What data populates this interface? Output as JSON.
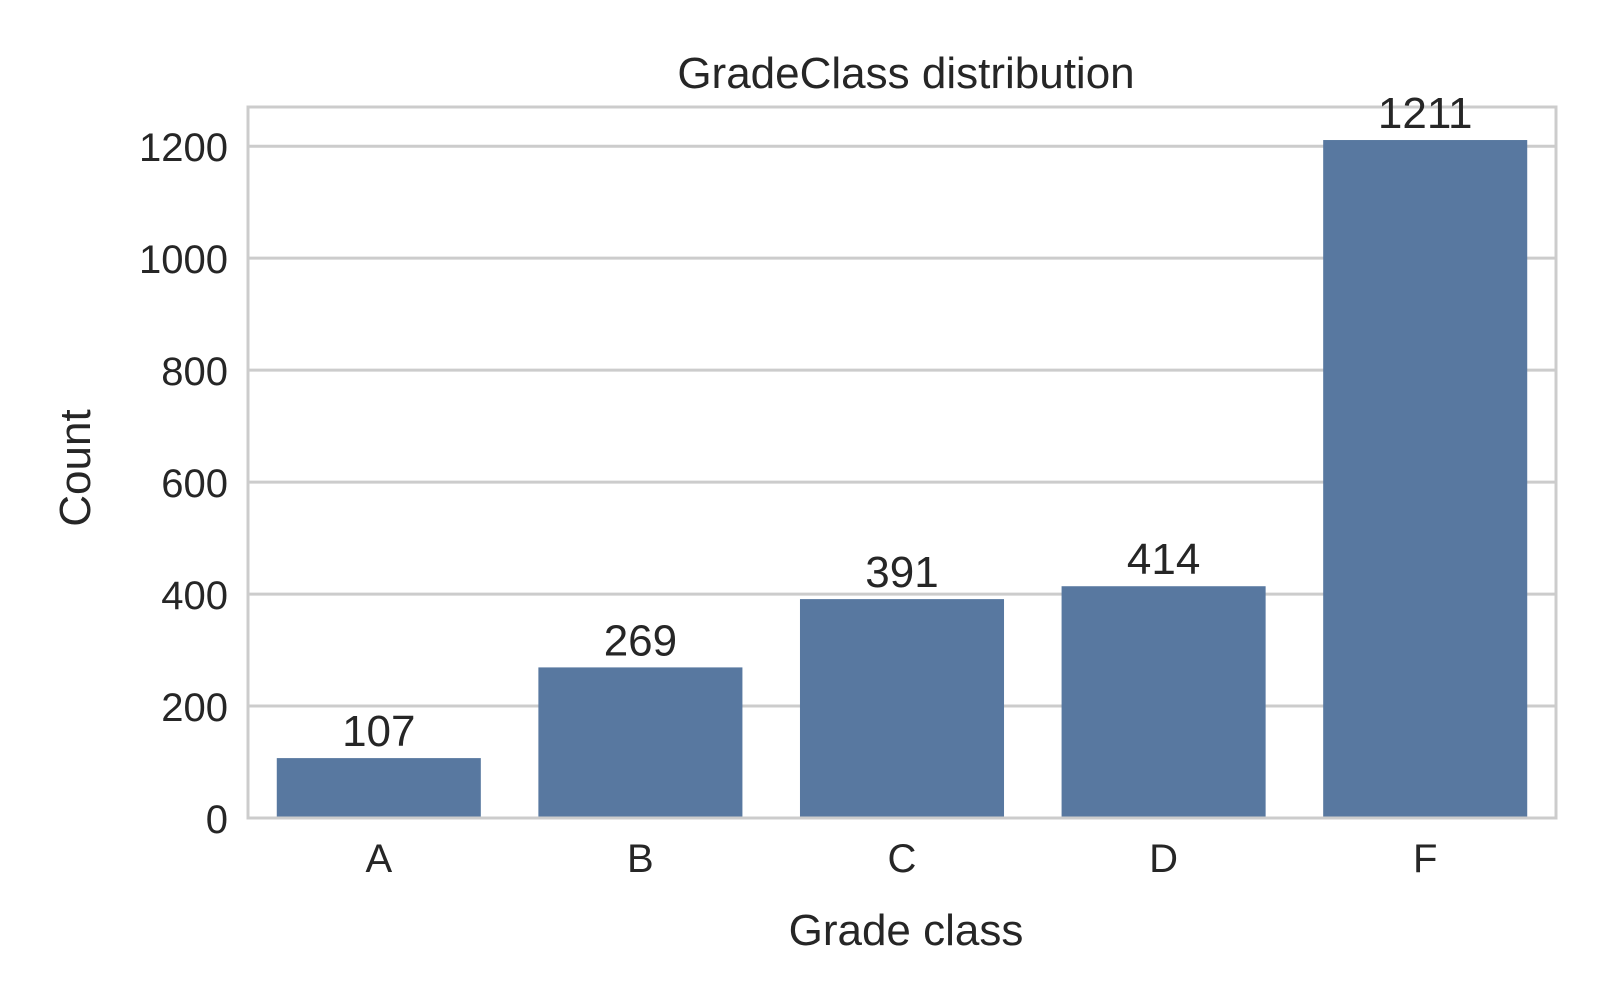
{
  "chart_data": {
    "type": "bar",
    "title": "GradeClass distribution",
    "xlabel": "Grade class",
    "ylabel": "Count",
    "categories": [
      "A",
      "B",
      "C",
      "D",
      "F"
    ],
    "values": [
      107,
      269,
      391,
      414,
      1211
    ],
    "data_labels": [
      "107",
      "269",
      "391",
      "414",
      "1211"
    ],
    "ylim": [
      0,
      1270
    ],
    "yticks": [
      0,
      200,
      400,
      600,
      800,
      1000,
      1200
    ],
    "ytick_labels": [
      "0",
      "200",
      "400",
      "600",
      "800",
      "1000",
      "1200"
    ],
    "grid": true,
    "legend": "none",
    "colors": {
      "bar": "#5878a0",
      "grid": "#cccccc",
      "frame": "#cccccc",
      "text": "#262626",
      "background": "#ffffff"
    }
  }
}
